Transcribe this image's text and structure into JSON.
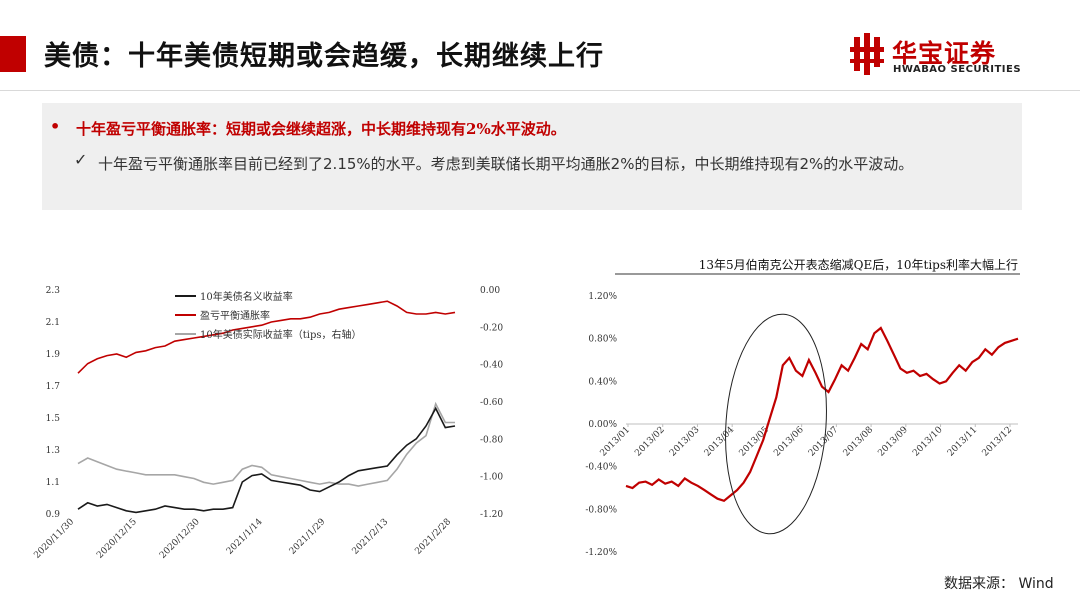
{
  "header": {
    "title": "美债：十年美债短期或会趋缓，长期继续上行",
    "logo_cn": "华宝证券",
    "logo_en": "HWABAO SECURITIES"
  },
  "summary": {
    "bullet": "•",
    "main": "十年盈亏平衡通胀率：短期或会继续超涨，中长期维持现有2%水平波动。",
    "detail": "十年盈亏平衡通胀率目前已经到了2.15%的水平。考虑到美联储长期平均通胀2%的目标，中长期维持现有2%的水平波动。"
  },
  "colors": {
    "accent": "#c00000",
    "nominal": "#1a1a1a",
    "breakeven": "#c00000",
    "tips": "#a6a6a6"
  },
  "chart_data": [
    {
      "type": "line",
      "title": "",
      "x_ticks": [
        "2020/11/30",
        "2020/12/15",
        "2020/12/30",
        "2021/1/14",
        "2021/1/29",
        "2021/2/13",
        "2021/2/28"
      ],
      "y_left": {
        "ticks": [
          "2.3",
          "2.1",
          "1.9",
          "1.7",
          "1.5",
          "1.3",
          "1.1",
          "0.9"
        ],
        "range": [
          0.9,
          2.3
        ]
      },
      "y_right": {
        "ticks": [
          "0.00",
          "-0.20",
          "-0.40",
          "-0.60",
          "-0.80",
          "-1.00",
          "-1.20"
        ],
        "range": [
          -1.2,
          0.0
        ]
      },
      "legend_position": "top-center",
      "series": [
        {
          "name": "10年美债名义收益率",
          "axis": "left",
          "values": [
            0.93,
            0.97,
            0.95,
            0.96,
            0.94,
            0.92,
            0.91,
            0.92,
            0.93,
            0.95,
            0.94,
            0.93,
            0.93,
            0.92,
            0.93,
            0.93,
            0.94,
            1.1,
            1.14,
            1.15,
            1.11,
            1.1,
            1.09,
            1.08,
            1.05,
            1.04,
            1.07,
            1.1,
            1.14,
            1.17,
            1.18,
            1.19,
            1.2,
            1.27,
            1.33,
            1.37,
            1.45,
            1.56,
            1.44,
            1.45
          ]
        },
        {
          "name": "盈亏平衡通胀率",
          "axis": "left",
          "values": [
            1.78,
            1.84,
            1.87,
            1.89,
            1.9,
            1.88,
            1.91,
            1.92,
            1.94,
            1.95,
            1.98,
            1.99,
            2.0,
            2.01,
            2.02,
            2.03,
            2.05,
            2.06,
            2.07,
            2.08,
            2.1,
            2.11,
            2.12,
            2.12,
            2.13,
            2.15,
            2.16,
            2.18,
            2.19,
            2.2,
            2.21,
            2.22,
            2.23,
            2.2,
            2.16,
            2.15,
            2.15,
            2.16,
            2.15,
            2.16
          ]
        },
        {
          "name": "10年美债实际收益率（tips，右轴）",
          "axis": "right",
          "values": [
            -0.93,
            -0.9,
            -0.92,
            -0.94,
            -0.96,
            -0.97,
            -0.98,
            -0.99,
            -0.99,
            -0.99,
            -0.99,
            -1.0,
            -1.01,
            -1.03,
            -1.04,
            -1.03,
            -1.02,
            -0.96,
            -0.94,
            -0.95,
            -0.99,
            -1.0,
            -1.01,
            -1.02,
            -1.03,
            -1.04,
            -1.03,
            -1.04,
            -1.04,
            -1.05,
            -1.04,
            -1.03,
            -1.02,
            -0.96,
            -0.88,
            -0.82,
            -0.78,
            -0.61,
            -0.71,
            -0.71
          ]
        }
      ]
    },
    {
      "type": "line",
      "title": "13年5月伯南克公开表态缩减QE后，10年tips利率大幅上行",
      "x_ticks": [
        "2013/01",
        "2013/02",
        "2013/03",
        "2013/04",
        "2013/05",
        "2013/06",
        "2013/07",
        "2013/08",
        "2013/09",
        "2013/10",
        "2013/11",
        "2013/12"
      ],
      "y_ticks": [
        "1.20%",
        "0.80%",
        "0.40%",
        "0.00%",
        "-0.40%",
        "-0.80%",
        "-1.20%"
      ],
      "ylim": [
        -1.2,
        1.2
      ],
      "series": [
        {
          "name": "10年tips利率",
          "values": [
            -0.58,
            -0.6,
            -0.55,
            -0.54,
            -0.57,
            -0.52,
            -0.56,
            -0.54,
            -0.58,
            -0.51,
            -0.55,
            -0.58,
            -0.62,
            -0.66,
            -0.7,
            -0.72,
            -0.67,
            -0.62,
            -0.55,
            -0.45,
            -0.3,
            -0.15,
            0.05,
            0.25,
            0.55,
            0.62,
            0.5,
            0.45,
            0.6,
            0.48,
            0.35,
            0.3,
            0.42,
            0.55,
            0.5,
            0.62,
            0.75,
            0.7,
            0.85,
            0.9,
            0.78,
            0.65,
            0.52,
            0.48,
            0.5,
            0.45,
            0.47,
            0.42,
            0.38,
            0.4,
            0.48,
            0.55,
            0.5,
            0.58,
            0.62,
            0.7,
            0.65,
            0.72,
            0.76,
            0.78,
            0.8
          ]
        }
      ]
    }
  ],
  "source": "数据来源： Wind"
}
